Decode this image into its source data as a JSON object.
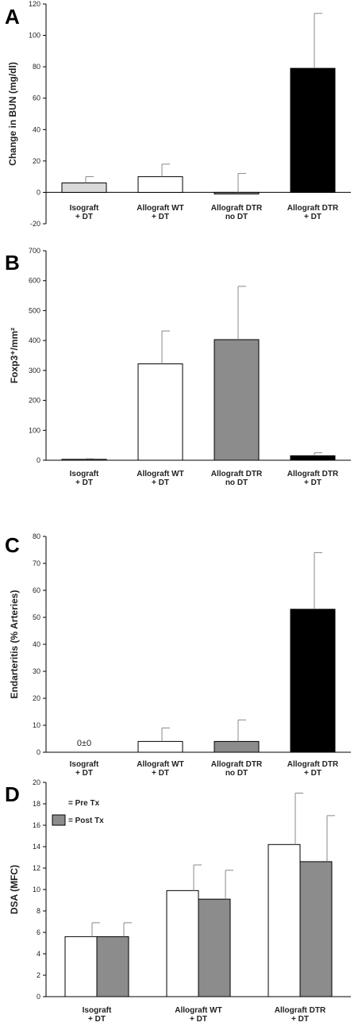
{
  "colors": {
    "light_gray": "#d9d9d9",
    "white": "#ffffff",
    "mid_gray": "#8c8c8c",
    "black": "#000000"
  },
  "chart_data": [
    {
      "panel": "A",
      "type": "bar",
      "ylabel": "Change in BUN (mg/dl)",
      "ylim": [
        -20,
        120
      ],
      "yticks": [
        -20,
        0,
        20,
        40,
        60,
        80,
        100,
        120
      ],
      "categories": [
        [
          "Isograft",
          "+ DT"
        ],
        [
          "Allograft WT",
          "+ DT"
        ],
        [
          "Allograft DTR",
          "no DT"
        ],
        [
          "Allograft DTR",
          "+ DT"
        ]
      ],
      "values": [
        6,
        10,
        -1,
        79
      ],
      "errors": [
        4,
        8,
        12,
        35
      ],
      "bar_colors": [
        "light_gray",
        "white",
        "mid_gray",
        "black"
      ]
    },
    {
      "panel": "B",
      "type": "bar",
      "ylabel": "Foxp3⁺/mm²",
      "ylim": [
        0,
        700
      ],
      "yticks": [
        0,
        100,
        200,
        300,
        400,
        500,
        600,
        700
      ],
      "categories": [
        [
          "Isograft",
          "+ DT"
        ],
        [
          "Allograft WT",
          "+ DT"
        ],
        [
          "Allograft DTR",
          "no DT"
        ],
        [
          "Allograft DTR",
          "+ DT"
        ]
      ],
      "values": [
        3,
        322,
        403,
        15
      ],
      "errors": [
        2,
        110,
        178,
        10
      ],
      "bar_colors": [
        "light_gray",
        "white",
        "mid_gray",
        "black"
      ]
    },
    {
      "panel": "C",
      "type": "bar",
      "ylabel": "Endarteritis (% Arteries)",
      "ylim": [
        0,
        80
      ],
      "yticks": [
        0,
        10,
        20,
        30,
        40,
        50,
        60,
        70,
        80
      ],
      "categories": [
        [
          "Isograft",
          "+ DT"
        ],
        [
          "Allograft WT",
          "+ DT"
        ],
        [
          "Allograft DTR",
          "no DT"
        ],
        [
          "Allograft DTR",
          "+ DT"
        ]
      ],
      "values": [
        0,
        4,
        4,
        53
      ],
      "errors": [
        0,
        5,
        8,
        21
      ],
      "bar_colors": [
        "light_gray",
        "white",
        "mid_gray",
        "black"
      ],
      "annotation": "0±0"
    },
    {
      "panel": "D",
      "type": "bar",
      "ylabel": "DSA (MFC)",
      "ylim": [
        0,
        20
      ],
      "yticks": [
        0,
        2,
        4,
        6,
        8,
        10,
        12,
        14,
        16,
        18,
        20
      ],
      "categories": [
        [
          "Isograft",
          "+ DT"
        ],
        [
          "Allograft WT",
          "+ DT"
        ],
        [
          "Allograft DTR",
          "+ DT"
        ]
      ],
      "series": [
        {
          "name": "= Pre Tx",
          "values": [
            5.6,
            9.9,
            14.2
          ],
          "errors": [
            1.3,
            2.4,
            4.8
          ],
          "color": "white"
        },
        {
          "name": "= Post Tx",
          "values": [
            5.6,
            9.1,
            12.6
          ],
          "errors": [
            1.3,
            2.7,
            4.3
          ],
          "color": "mid_gray"
        }
      ]
    }
  ]
}
